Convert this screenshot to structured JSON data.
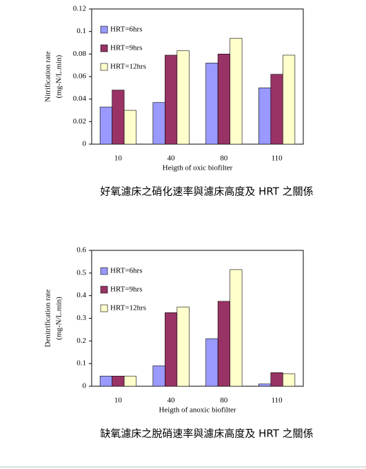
{
  "chart_data": [
    {
      "type": "bar",
      "ylabel": [
        "Nitrification rate",
        "(mg-N/L.min)"
      ],
      "xlabel": "Heigth of oxic biofilter",
      "caption": "好氧濾床之硝化速率與濾床高度及 HRT 之關係",
      "categories": [
        "10",
        "40",
        "80",
        "110"
      ],
      "series": [
        {
          "name": "HRT=6hrs",
          "color": "#9999ff",
          "values": [
            0.033,
            0.037,
            0.072,
            0.05
          ]
        },
        {
          "name": "HRT=9hrs",
          "color": "#993366",
          "values": [
            0.048,
            0.079,
            0.08,
            0.062
          ]
        },
        {
          "name": "HRT=12hrs",
          "color": "#ffffcc",
          "values": [
            0.03,
            0.083,
            0.094,
            0.079
          ]
        }
      ],
      "ylim": [
        0,
        0.12
      ],
      "yticks": [
        0,
        0.02,
        0.04,
        0.06,
        0.08,
        0.1,
        0.12
      ],
      "grid": false,
      "legend": "upper-left"
    },
    {
      "type": "bar",
      "ylabel": [
        "Denitrification rate",
        "(mg-N/L.min)"
      ],
      "xlabel": "Heigth of anoxic biofilter",
      "caption": "缺氧濾床之脫硝速率與濾床高度及 HRT 之關係",
      "categories": [
        "10",
        "40",
        "80",
        "110"
      ],
      "series": [
        {
          "name": "HRT=6hrs",
          "color": "#9999ff",
          "values": [
            0.045,
            0.09,
            0.21,
            0.01
          ]
        },
        {
          "name": "HRT=9hrs",
          "color": "#993366",
          "values": [
            0.045,
            0.325,
            0.375,
            0.06
          ]
        },
        {
          "name": "HRT=12hrs",
          "color": "#ffffcc",
          "values": [
            0.045,
            0.35,
            0.515,
            0.055
          ]
        }
      ],
      "ylim": [
        0,
        0.6
      ],
      "yticks": [
        0,
        0.1,
        0.2,
        0.3,
        0.4,
        0.5,
        0.6
      ],
      "grid": false,
      "legend": "upper-left"
    }
  ]
}
